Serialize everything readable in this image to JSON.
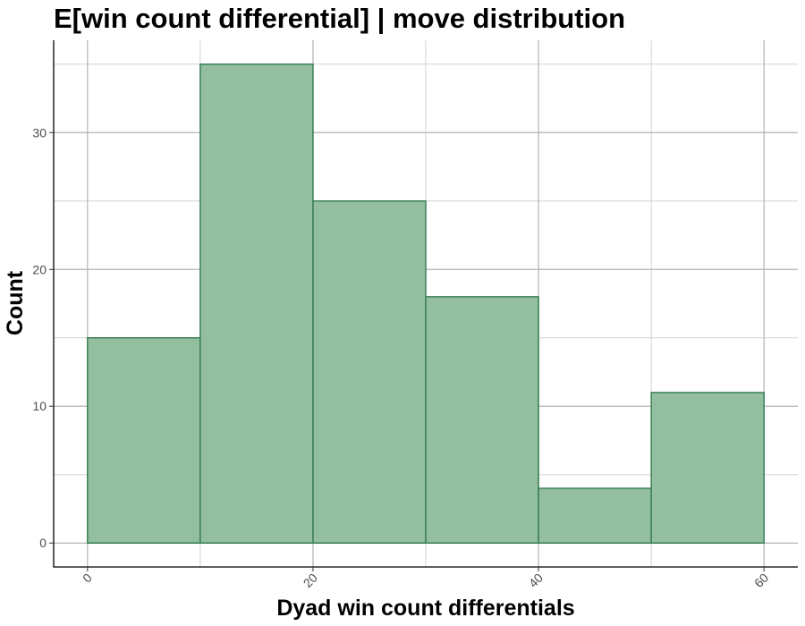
{
  "chart_data": {
    "type": "bar",
    "title": "E[win count differential] | move distribution",
    "xlabel": "Dyad win count differentials",
    "ylabel": "Count",
    "bins": [
      {
        "x0": 0,
        "x1": 10,
        "count": 15
      },
      {
        "x0": 10,
        "x1": 20,
        "count": 35
      },
      {
        "x0": 20,
        "x1": 30,
        "count": 25
      },
      {
        "x0": 30,
        "x1": 40,
        "count": 18
      },
      {
        "x0": 40,
        "x1": 50,
        "count": 4
      },
      {
        "x0": 50,
        "x1": 60,
        "count": 11
      }
    ],
    "xlim": [
      -3,
      63
    ],
    "ylim": [
      -1.75,
      36.75
    ],
    "xticks": [
      0,
      20,
      40,
      60
    ],
    "xtick_labels": [
      "0",
      "20",
      "40",
      "60"
    ],
    "yticks": [
      0,
      10,
      20,
      30
    ],
    "ytick_labels": [
      "0",
      "10",
      "20",
      "30"
    ],
    "y_minor_gridlines": [
      5,
      15,
      25,
      35
    ],
    "x_minor_gridlines": [
      10,
      30,
      50
    ],
    "grid": true,
    "colors": {
      "bar_fill": "#93bea0",
      "bar_stroke": "#3b8158",
      "grid_major": "#b3b3b3",
      "grid_minor": "#d4d4d4",
      "axis": "#000000",
      "tick_label": "#4d4d4d",
      "background": "#ffffff"
    }
  }
}
